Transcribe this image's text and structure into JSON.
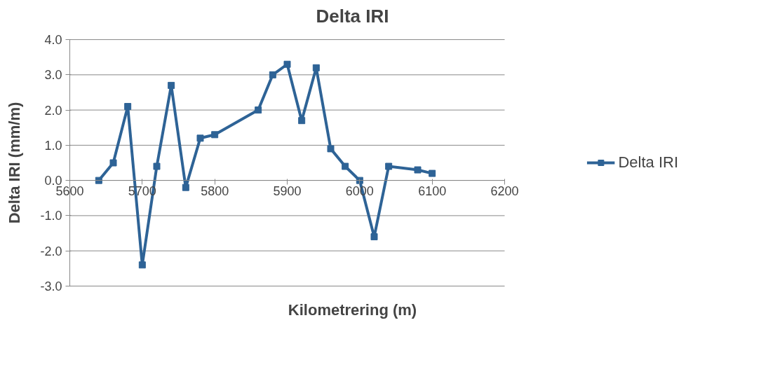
{
  "chart_data": {
    "type": "line",
    "title": "Delta IRI",
    "xlabel": "Kilometrering (m)",
    "ylabel": "Delta IRI (mm/m)",
    "x": [
      5640,
      5660,
      5680,
      5700,
      5720,
      5740,
      5760,
      5780,
      5800,
      5860,
      5880,
      5900,
      5920,
      5940,
      5960,
      5980,
      6000,
      6020,
      6040,
      6080,
      6100
    ],
    "series": [
      {
        "name": "Delta IRI",
        "color": "#2e6396",
        "values": [
          0.0,
          0.5,
          2.1,
          -2.4,
          0.4,
          2.7,
          -0.2,
          1.2,
          1.3,
          2.0,
          3.0,
          3.3,
          1.7,
          3.2,
          0.9,
          0.4,
          0.0,
          -1.6,
          0.4,
          0.3,
          0.2
        ]
      }
    ],
    "xlim": [
      5600,
      6200
    ],
    "xticks": [
      5600,
      5700,
      5800,
      5900,
      6000,
      6100,
      6200
    ],
    "ylim": [
      -3.0,
      4.0
    ],
    "yticks": [
      {
        "value": -3,
        "label": "-3.0"
      },
      {
        "value": -2,
        "label": "-2.0"
      },
      {
        "value": -1,
        "label": "-1.0"
      },
      {
        "value": 0,
        "label": "0.0"
      },
      {
        "value": 1,
        "label": "1.0"
      },
      {
        "value": 2,
        "label": "2.0"
      },
      {
        "value": 3,
        "label": "3.0"
      },
      {
        "value": 4,
        "label": "4.0"
      }
    ],
    "grid": "y",
    "legend": "right",
    "marker": "square",
    "line_style": "solid"
  }
}
